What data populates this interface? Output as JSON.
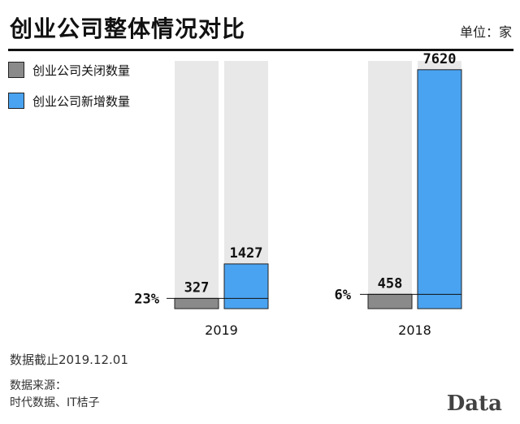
{
  "header": {
    "title": "创业公司整体情况对比",
    "unit": "单位：家"
  },
  "legend": [
    {
      "label": "创业公司关闭数量",
      "color": "#8a8a8a"
    },
    {
      "label": "创业公司新增数量",
      "color": "#4aa3f0"
    }
  ],
  "footer": {
    "cutoff": "数据截止2019.12.01",
    "source_label": "数据来源：",
    "source_text": "时代数据、IT桔子",
    "watermark": "Data"
  },
  "colors": {
    "background_bar": "#e8e8e8",
    "closed": "#8a8a8a",
    "new": "#4aa3f0"
  },
  "chart_data": {
    "type": "bar",
    "categories": [
      "2019",
      "2018"
    ],
    "series": [
      {
        "name": "创业公司关闭数量",
        "values": [
          327,
          458
        ]
      },
      {
        "name": "创业公司新增数量",
        "values": [
          1427,
          7620
        ]
      }
    ],
    "ratio_labels": [
      "23%",
      "6%"
    ],
    "ylim": [
      0,
      7900
    ],
    "grid": false,
    "legend": "top-left"
  }
}
